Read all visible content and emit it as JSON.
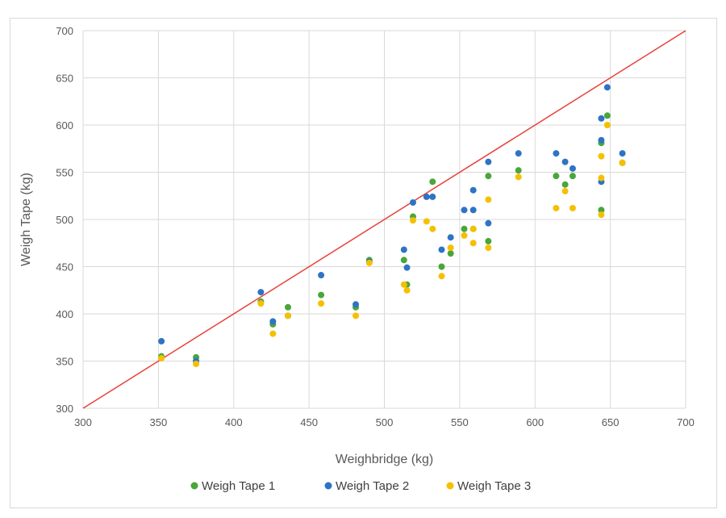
{
  "chart_data": {
    "type": "scatter",
    "title": "",
    "xlabel": "Weighbridge (kg)",
    "ylabel": "Weigh Tape (kg)",
    "xlim": [
      300,
      700
    ],
    "ylim": [
      300,
      700
    ],
    "x_ticks": [
      "300",
      "350",
      "400",
      "450",
      "500",
      "550",
      "600",
      "650",
      "700"
    ],
    "y_ticks": [
      "300",
      "350",
      "400",
      "450",
      "500",
      "550",
      "600",
      "650",
      "700"
    ],
    "grid": true,
    "legend_position": "bottom",
    "reference_line": {
      "x": [
        300,
        700
      ],
      "y": [
        300,
        700
      ],
      "color": "#e8413a"
    },
    "series": [
      {
        "name": "Weigh Tape 1",
        "color": "#4aa63a",
        "points": [
          [
            352,
            355
          ],
          [
            375,
            354
          ],
          [
            418,
            413
          ],
          [
            426,
            389
          ],
          [
            436,
            407
          ],
          [
            458,
            420
          ],
          [
            481,
            407
          ],
          [
            490,
            457
          ],
          [
            513,
            457
          ],
          [
            515,
            431
          ],
          [
            519,
            503
          ],
          [
            532,
            540
          ],
          [
            538,
            450
          ],
          [
            544,
            464
          ],
          [
            553,
            490
          ],
          [
            559,
            490
          ],
          [
            569,
            546
          ],
          [
            569,
            477
          ],
          [
            589,
            552
          ],
          [
            614,
            546
          ],
          [
            620,
            537
          ],
          [
            625,
            546
          ],
          [
            644,
            510
          ],
          [
            644,
            581
          ],
          [
            648,
            610
          ],
          [
            658,
            560
          ]
        ]
      },
      {
        "name": "Weigh Tape 2",
        "color": "#2f73c4",
        "points": [
          [
            352,
            371
          ],
          [
            375,
            350
          ],
          [
            418,
            423
          ],
          [
            426,
            392
          ],
          [
            436,
            398
          ],
          [
            458,
            441
          ],
          [
            481,
            410
          ],
          [
            490,
            455
          ],
          [
            513,
            468
          ],
          [
            515,
            449
          ],
          [
            519,
            518
          ],
          [
            528,
            524
          ],
          [
            532,
            524
          ],
          [
            538,
            468
          ],
          [
            544,
            481
          ],
          [
            553,
            510
          ],
          [
            559,
            531
          ],
          [
            559,
            510
          ],
          [
            569,
            561
          ],
          [
            569,
            496
          ],
          [
            589,
            570
          ],
          [
            614,
            570
          ],
          [
            620,
            561
          ],
          [
            625,
            554
          ],
          [
            644,
            540
          ],
          [
            644,
            584
          ],
          [
            644,
            607
          ],
          [
            648,
            640
          ],
          [
            658,
            570
          ]
        ]
      },
      {
        "name": "Weigh Tape 3",
        "color": "#f5c000",
        "points": [
          [
            352,
            353
          ],
          [
            375,
            347
          ],
          [
            418,
            411
          ],
          [
            426,
            379
          ],
          [
            436,
            398
          ],
          [
            458,
            411
          ],
          [
            481,
            398
          ],
          [
            490,
            454
          ],
          [
            513,
            431
          ],
          [
            515,
            425
          ],
          [
            519,
            499
          ],
          [
            528,
            498
          ],
          [
            532,
            490
          ],
          [
            538,
            440
          ],
          [
            544,
            470
          ],
          [
            553,
            483
          ],
          [
            559,
            475
          ],
          [
            559,
            490
          ],
          [
            569,
            470
          ],
          [
            569,
            521
          ],
          [
            589,
            545
          ],
          [
            614,
            512
          ],
          [
            620,
            530
          ],
          [
            625,
            512
          ],
          [
            644,
            505
          ],
          [
            644,
            544
          ],
          [
            644,
            567
          ],
          [
            648,
            600
          ],
          [
            658,
            560
          ]
        ]
      }
    ]
  }
}
